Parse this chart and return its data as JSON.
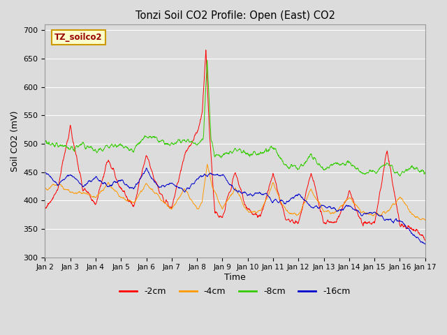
{
  "title": "Tonzi Soil CO2 Profile: Open (East) CO2",
  "ylabel": "Soil CO2 (mV)",
  "xlabel": "Time",
  "watermark": "TZ_soilco2",
  "ylim": [
    300,
    710
  ],
  "yticks": [
    300,
    350,
    400,
    450,
    500,
    550,
    600,
    650,
    700
  ],
  "xlim": [
    0,
    15
  ],
  "xtick_labels": [
    "Jan 2",
    "Jan 3",
    "Jan 4",
    "Jan 5",
    "Jan 6",
    "Jan 7",
    "Jan 8",
    "Jan 9",
    "Jan 10",
    "Jan 11",
    "Jan 12",
    "Jan 13",
    "Jan 14",
    "Jan 15",
    "Jan 16",
    "Jan 17"
  ],
  "line_colors": [
    "#ff0000",
    "#ff9900",
    "#33cc00",
    "#0000cc"
  ],
  "line_labels": [
    "-2cm",
    "-4cm",
    "-8cm",
    "-16cm"
  ],
  "bg_color": "#dcdcdc",
  "watermark_fg": "#990000",
  "watermark_bg": "#ffffcc",
  "watermark_border": "#cc9900"
}
